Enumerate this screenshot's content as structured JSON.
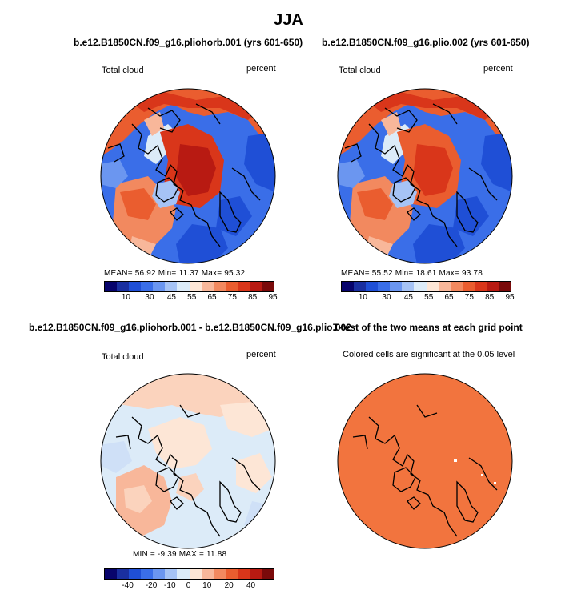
{
  "figure_title": "JJA",
  "panels": [
    {
      "title": "b.e12.B1850CN.f09_g16.pliohorb.001 (yrs 601-650)",
      "left_label": "Total cloud",
      "right_label": "percent",
      "stats": "MEAN=   56.92   Min=   11.37   Max=   95.32",
      "colorbar_ticks": [
        "10",
        "30",
        "45",
        "55",
        "65",
        "75",
        "85",
        "95"
      ]
    },
    {
      "title": "b.e12.B1850CN.f09_g16.plio.002 (yrs 601-650)",
      "left_label": "Total cloud",
      "right_label": "percent",
      "stats": "MEAN=   55.52   Min=   18.61   Max=   93.78",
      "colorbar_ticks": [
        "10",
        "30",
        "45",
        "55",
        "65",
        "75",
        "85",
        "95"
      ]
    },
    {
      "title": "b.e12.B1850CN.f09_g16.pliohorb.001 - b.e12.B1850CN.f09_g16.plio.002",
      "left_label": "Total cloud",
      "right_label": "percent",
      "stats": "MIN  =   -9.39  MAX  =   11.88",
      "colorbar_ticks": [
        "-40",
        "-20",
        "-10",
        "0",
        "10",
        "20",
        "40"
      ]
    },
    {
      "title": "T-test of the two means at each grid point",
      "subtitle": "Colored cells are significant at the 0.05 level"
    }
  ],
  "colors": {
    "abs_scale": [
      "#08046c",
      "#1a2fa0",
      "#1f4fd6",
      "#3a6ee8",
      "#6b96f0",
      "#a6c3f5",
      "#dcebf8",
      "#fde6d6",
      "#f8b79a",
      "#f2895f",
      "#ea5d2f",
      "#d9361a",
      "#b81a12",
      "#7a0a0a"
    ],
    "diff_scale": [
      "#08046c",
      "#1a2fa0",
      "#1f4fd6",
      "#3a6ee8",
      "#6b96f0",
      "#a6c3f5",
      "#dcebf8",
      "#fde6d6",
      "#f8b79a",
      "#f2895f",
      "#ea5d2f",
      "#d9361a",
      "#b81a12",
      "#7a0a0a"
    ],
    "ttest_fill": "#f2743e"
  }
}
